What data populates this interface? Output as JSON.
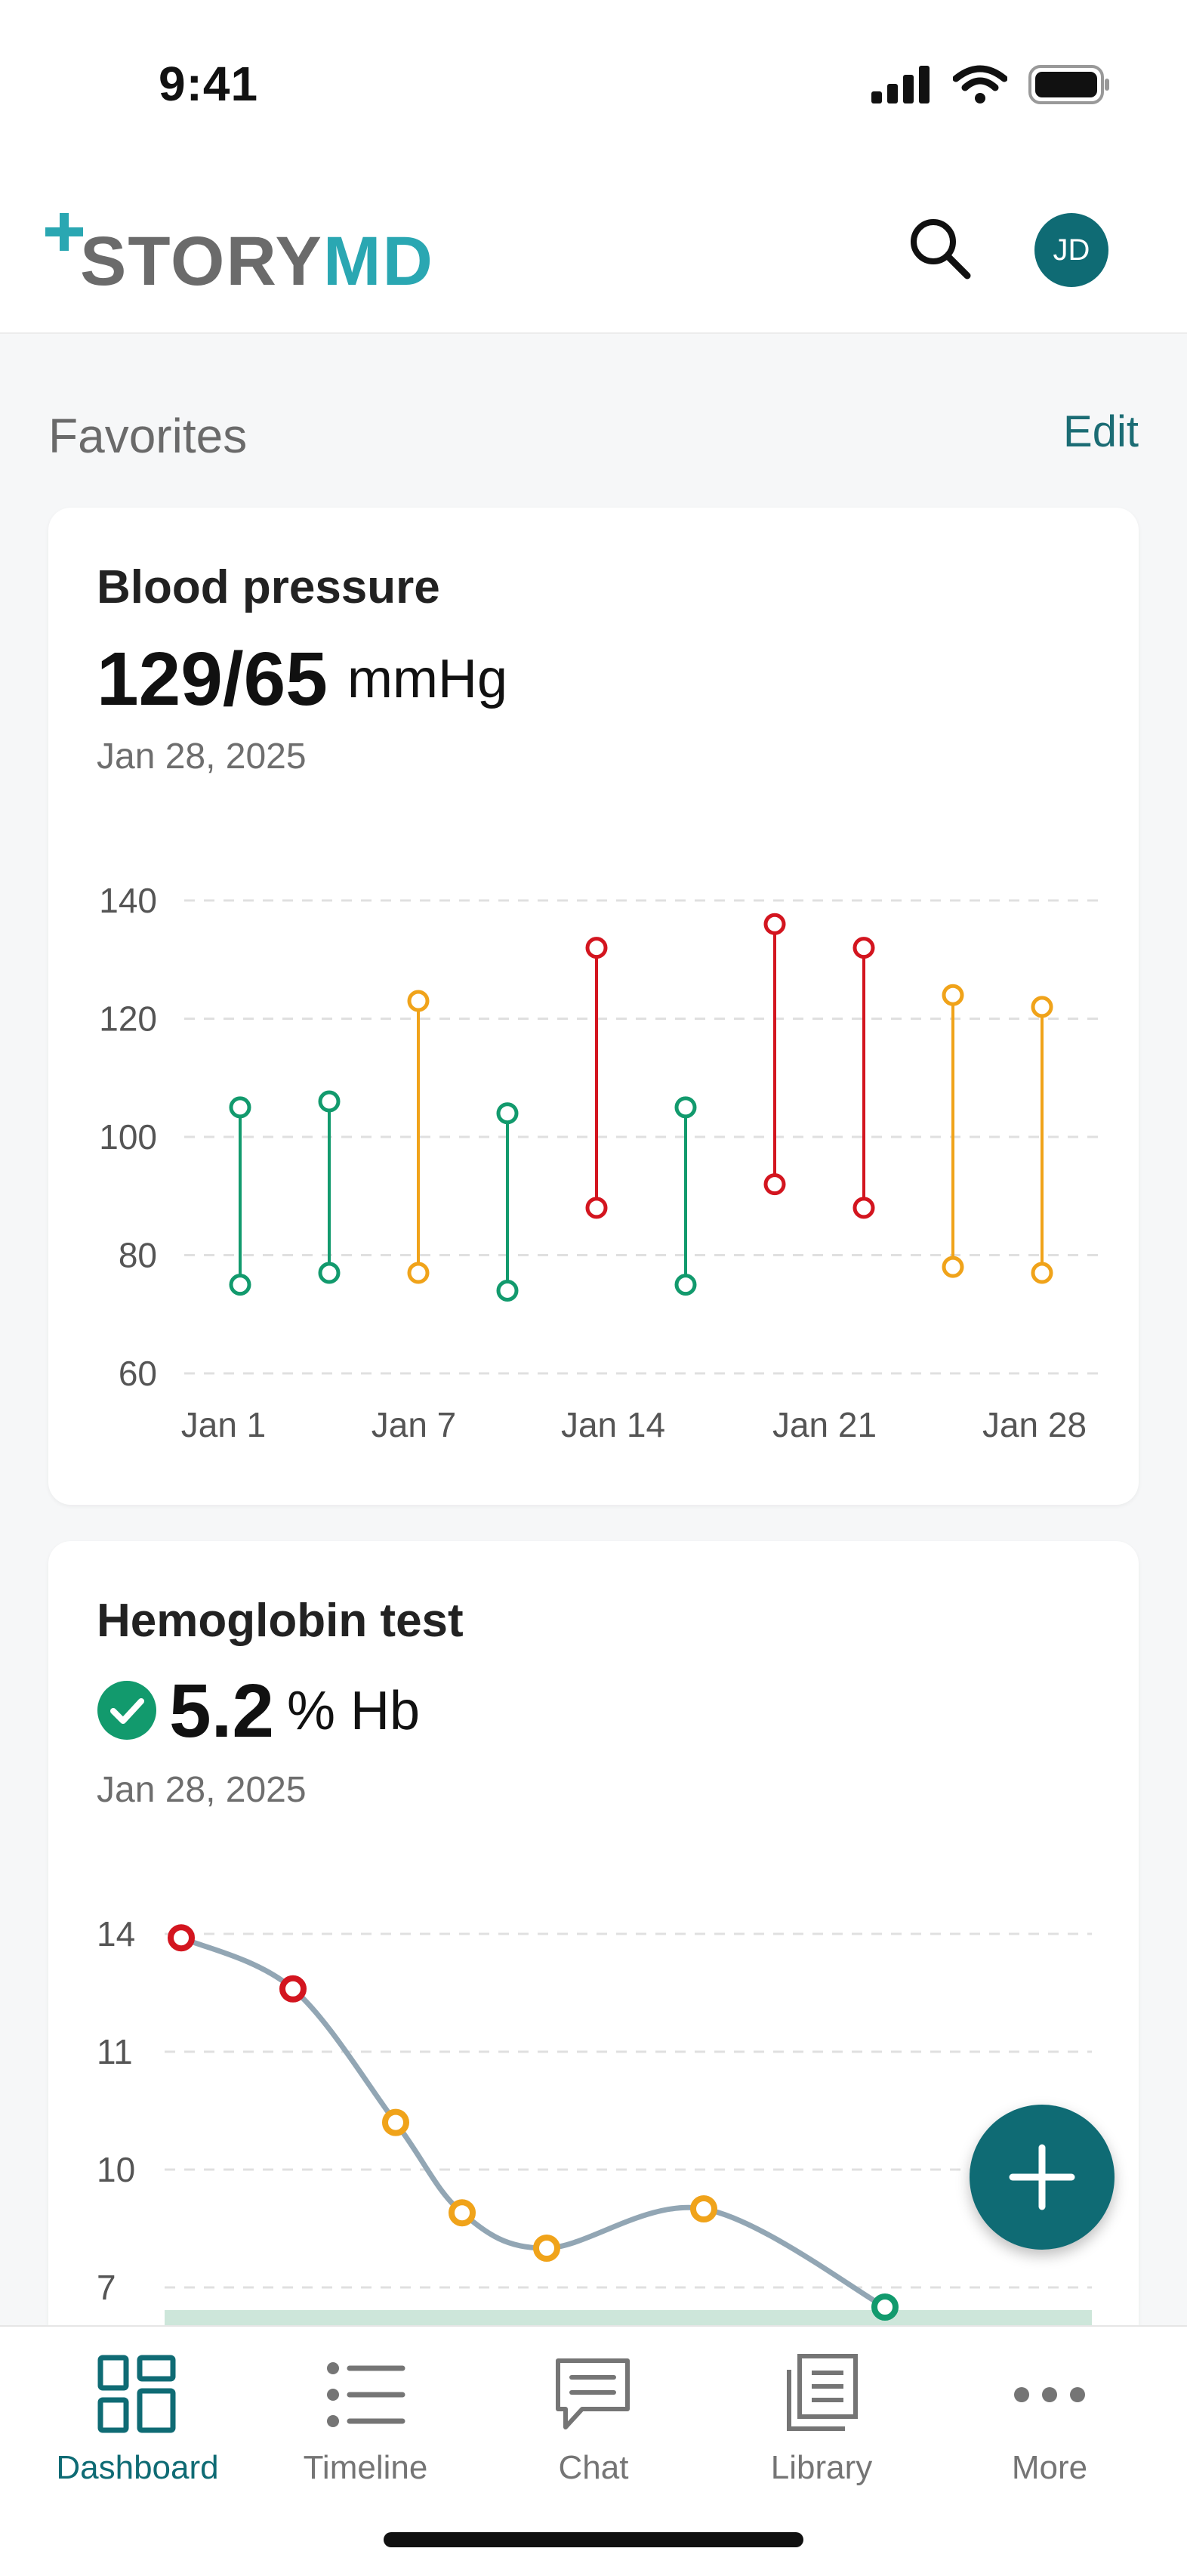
{
  "status": {
    "time": "9:41"
  },
  "header": {
    "logo_part1": "STORY",
    "logo_part2": "MD",
    "avatar_initials": "JD"
  },
  "favorites": {
    "title": "Favorites",
    "edit_label": "Edit"
  },
  "colors": {
    "normal": "#129a6d",
    "elevated": "#f0a31a",
    "high": "#d3151f",
    "brand": "#0f6b74",
    "logo_accent": "#2aa7b2"
  },
  "cards": {
    "blood_pressure": {
      "title": "Blood pressure",
      "value": "129/65",
      "unit": "mmHg",
      "date": "Jan 28, 2025"
    },
    "hemoglobin": {
      "title": "Hemoglobin test",
      "value": "5.2",
      "unit": "% Hb",
      "date": "Jan 28, 2025",
      "status_icon": "check-circle-icon"
    }
  },
  "chart_data": [
    {
      "type": "range-bar",
      "ylim": [
        60,
        140
      ],
      "yticks": [
        "60",
        "80",
        "100",
        "120",
        "140"
      ],
      "xticks": [
        "Jan 1",
        "Jan 7",
        "Jan 14",
        "Jan 21",
        "Jan 28"
      ],
      "grid": true,
      "series": [
        {
          "low": 75,
          "high": 105,
          "status": "normal"
        },
        {
          "low": 77,
          "high": 106,
          "status": "normal"
        },
        {
          "low": 77,
          "high": 123,
          "status": "elevated"
        },
        {
          "low": 74,
          "high": 104,
          "status": "normal"
        },
        {
          "low": 88,
          "high": 132,
          "status": "high"
        },
        {
          "low": 75,
          "high": 105,
          "status": "normal"
        },
        {
          "low": 92,
          "high": 136,
          "status": "high"
        },
        {
          "low": 88,
          "high": 132,
          "status": "high"
        },
        {
          "low": 78,
          "high": 124,
          "status": "elevated"
        },
        {
          "low": 77,
          "high": 122,
          "status": "elevated"
        }
      ]
    },
    {
      "type": "line",
      "yticks": [
        "14",
        "11",
        "10",
        "7"
      ],
      "grid": true,
      "points": [
        {
          "value": 13.9,
          "status": "high"
        },
        {
          "value": 12.6,
          "status": "high"
        },
        {
          "value": 10.4,
          "status": "elevated"
        },
        {
          "value": 8.9,
          "status": "elevated"
        },
        {
          "value": 8.0,
          "status": "elevated"
        },
        {
          "value": 9.0,
          "status": "elevated"
        },
        {
          "value": 6.5,
          "status": "normal"
        }
      ]
    }
  ],
  "nav": {
    "items": [
      {
        "label": "Dashboard",
        "icon": "dashboard-icon"
      },
      {
        "label": "Timeline",
        "icon": "timeline-icon"
      },
      {
        "label": "Chat",
        "icon": "chat-icon"
      },
      {
        "label": "Library",
        "icon": "library-icon"
      },
      {
        "label": "More",
        "icon": "more-icon"
      }
    ]
  }
}
